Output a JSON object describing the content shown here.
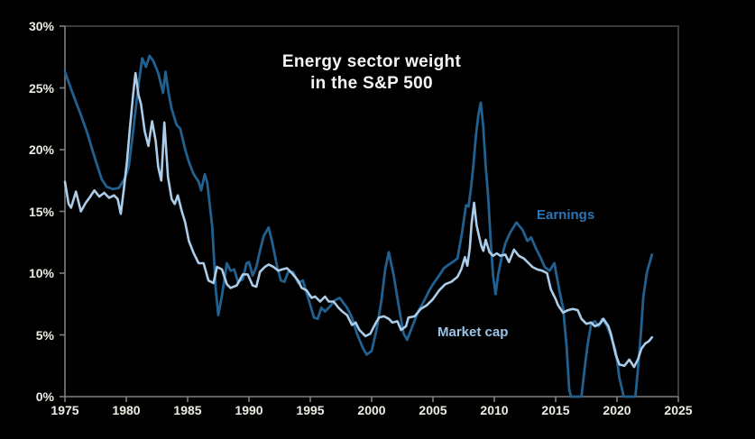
{
  "chart_data": {
    "type": "line",
    "title_lines": [
      "Energy sector weight",
      "in the S&P 500"
    ],
    "xlabel": "",
    "ylabel": "",
    "xlim": [
      1975,
      2025
    ],
    "ylim": [
      0,
      30
    ],
    "grid": false,
    "legend_position": "inline-annotations",
    "x_axis": {
      "tick_values": [
        1975,
        1980,
        1985,
        1990,
        1995,
        2000,
        2005,
        2010,
        2015,
        2020,
        2025
      ],
      "tick_labels": [
        "1975",
        "1980",
        "1985",
        "1990",
        "1995",
        "2000",
        "2005",
        "2010",
        "2015",
        "2020",
        "2025"
      ]
    },
    "y_axis": {
      "tick_values": [
        0,
        5,
        10,
        15,
        20,
        25,
        30
      ],
      "tick_labels": [
        "0%",
        "5%",
        "10%",
        "15%",
        "20%",
        "25%",
        "30%"
      ]
    },
    "series": [
      {
        "name": "Earnings",
        "color": "#21608f",
        "label_color": "#2e74b5",
        "stroke_width": 2.8,
        "points": [
          [
            1975.0,
            26.3
          ],
          [
            1975.4,
            25.2
          ],
          [
            1975.8,
            24.1
          ],
          [
            1976.3,
            22.8
          ],
          [
            1976.8,
            21.4
          ],
          [
            1977.2,
            20.1
          ],
          [
            1977.6,
            18.8
          ],
          [
            1978.0,
            17.6
          ],
          [
            1978.4,
            17.0
          ],
          [
            1978.9,
            16.8
          ],
          [
            1979.4,
            16.9
          ],
          [
            1979.9,
            17.7
          ],
          [
            1980.2,
            18.6
          ],
          [
            1980.5,
            21.0
          ],
          [
            1980.8,
            23.6
          ],
          [
            1981.0,
            25.3
          ],
          [
            1981.3,
            27.4
          ],
          [
            1981.6,
            26.7
          ],
          [
            1981.9,
            27.6
          ],
          [
            1982.2,
            27.2
          ],
          [
            1982.6,
            26.2
          ],
          [
            1983.0,
            24.6
          ],
          [
            1983.2,
            26.3
          ],
          [
            1983.45,
            24.6
          ],
          [
            1983.7,
            23.3
          ],
          [
            1984.1,
            22.0
          ],
          [
            1984.4,
            21.7
          ],
          [
            1984.8,
            20.0
          ],
          [
            1985.1,
            19.0
          ],
          [
            1985.5,
            18.0
          ],
          [
            1985.9,
            17.4
          ],
          [
            1986.1,
            16.7
          ],
          [
            1986.4,
            18.0
          ],
          [
            1986.6,
            17.3
          ],
          [
            1987.0,
            13.8
          ],
          [
            1987.3,
            8.6
          ],
          [
            1987.5,
            6.6
          ],
          [
            1987.8,
            8.2
          ],
          [
            1988.2,
            10.8
          ],
          [
            1988.5,
            10.2
          ],
          [
            1988.8,
            10.3
          ],
          [
            1989.1,
            9.3
          ],
          [
            1989.5,
            9.5
          ],
          [
            1989.8,
            10.8
          ],
          [
            1990.0,
            10.9
          ],
          [
            1990.3,
            9.8
          ],
          [
            1990.6,
            10.5
          ],
          [
            1990.9,
            11.8
          ],
          [
            1991.2,
            13.0
          ],
          [
            1991.6,
            13.7
          ],
          [
            1991.9,
            12.5
          ],
          [
            1992.3,
            10.5
          ],
          [
            1992.6,
            9.4
          ],
          [
            1992.9,
            9.3
          ],
          [
            1993.2,
            10.1
          ],
          [
            1993.6,
            10.1
          ],
          [
            1994.0,
            9.2
          ],
          [
            1994.4,
            9.4
          ],
          [
            1995.0,
            7.4
          ],
          [
            1995.3,
            6.4
          ],
          [
            1995.6,
            6.3
          ],
          [
            1995.9,
            7.2
          ],
          [
            1996.2,
            6.9
          ],
          [
            1996.6,
            7.3
          ],
          [
            1997.0,
            7.8
          ],
          [
            1997.4,
            8.0
          ],
          [
            1998.0,
            7.2
          ],
          [
            1998.4,
            6.4
          ],
          [
            1998.8,
            5.1
          ],
          [
            1999.3,
            3.9
          ],
          [
            1999.6,
            3.4
          ],
          [
            2000.0,
            3.7
          ],
          [
            2000.4,
            5.4
          ],
          [
            2000.8,
            7.8
          ],
          [
            2001.1,
            10.3
          ],
          [
            2001.4,
            11.7
          ],
          [
            2001.8,
            9.8
          ],
          [
            2002.2,
            7.4
          ],
          [
            2002.6,
            5.1
          ],
          [
            2002.9,
            4.6
          ],
          [
            2003.4,
            5.9
          ],
          [
            2003.8,
            6.9
          ],
          [
            2004.3,
            7.8
          ],
          [
            2004.7,
            8.6
          ],
          [
            2005.0,
            9.1
          ],
          [
            2005.5,
            9.8
          ],
          [
            2005.9,
            10.4
          ],
          [
            2006.3,
            10.7
          ],
          [
            2006.6,
            10.9
          ],
          [
            2007.0,
            11.2
          ],
          [
            2007.35,
            13.2
          ],
          [
            2007.7,
            15.5
          ],
          [
            2007.9,
            15.4
          ],
          [
            2008.1,
            16.9
          ],
          [
            2008.3,
            18.8
          ],
          [
            2008.5,
            21.1
          ],
          [
            2008.7,
            22.8
          ],
          [
            2008.9,
            23.8
          ],
          [
            2009.1,
            21.8
          ],
          [
            2009.3,
            18.6
          ],
          [
            2009.5,
            16.2
          ],
          [
            2009.7,
            12.7
          ],
          [
            2009.9,
            9.8
          ],
          [
            2010.1,
            8.3
          ],
          [
            2010.3,
            9.8
          ],
          [
            2010.6,
            11.3
          ],
          [
            2010.9,
            12.4
          ],
          [
            2011.3,
            13.3
          ],
          [
            2011.8,
            14.1
          ],
          [
            2012.3,
            13.5
          ],
          [
            2012.7,
            12.6
          ],
          [
            2013.0,
            12.9
          ],
          [
            2013.4,
            12.0
          ],
          [
            2013.8,
            11.2
          ],
          [
            2014.1,
            10.5
          ],
          [
            2014.5,
            10.2
          ],
          [
            2014.9,
            10.8
          ],
          [
            2015.3,
            8.6
          ],
          [
            2015.6,
            7.2
          ],
          [
            2015.9,
            4.0
          ],
          [
            2016.1,
            0.6
          ],
          [
            2016.25,
            0.0
          ],
          [
            2017.1,
            0.0
          ],
          [
            2017.35,
            2.2
          ],
          [
            2017.6,
            4.2
          ],
          [
            2017.9,
            5.9
          ],
          [
            2018.2,
            6.1
          ],
          [
            2018.5,
            5.7
          ],
          [
            2018.8,
            6.3
          ],
          [
            2019.2,
            5.7
          ],
          [
            2019.5,
            4.9
          ],
          [
            2019.9,
            3.7
          ],
          [
            2020.2,
            1.5
          ],
          [
            2020.55,
            0.0
          ],
          [
            2021.5,
            0.0
          ],
          [
            2021.75,
            2.7
          ],
          [
            2021.95,
            5.1
          ],
          [
            2022.15,
            8.1
          ],
          [
            2022.45,
            10.1
          ],
          [
            2022.85,
            11.5
          ]
        ]
      },
      {
        "name": "Market cap",
        "color": "#abcde9",
        "label_color": "#9cc3e5",
        "stroke_width": 2.6,
        "points": [
          [
            1975.0,
            17.4
          ],
          [
            1975.3,
            15.6
          ],
          [
            1975.5,
            15.3
          ],
          [
            1975.9,
            16.6
          ],
          [
            1976.3,
            15.0
          ],
          [
            1976.7,
            15.7
          ],
          [
            1977.0,
            16.1
          ],
          [
            1977.4,
            16.7
          ],
          [
            1977.8,
            16.2
          ],
          [
            1978.2,
            16.5
          ],
          [
            1978.6,
            16.1
          ],
          [
            1979.0,
            16.3
          ],
          [
            1979.3,
            16.0
          ],
          [
            1979.55,
            14.8
          ],
          [
            1979.8,
            16.8
          ],
          [
            1980.05,
            19.0
          ],
          [
            1980.3,
            21.8
          ],
          [
            1980.55,
            24.4
          ],
          [
            1980.75,
            26.2
          ],
          [
            1981.0,
            24.4
          ],
          [
            1981.2,
            23.7
          ],
          [
            1981.5,
            21.5
          ],
          [
            1981.8,
            20.3
          ],
          [
            1982.1,
            22.3
          ],
          [
            1982.4,
            20.7
          ],
          [
            1982.6,
            18.6
          ],
          [
            1982.85,
            17.5
          ],
          [
            1983.1,
            22.2
          ],
          [
            1983.4,
            17.8
          ],
          [
            1983.7,
            16.0
          ],
          [
            1983.95,
            15.6
          ],
          [
            1984.2,
            16.3
          ],
          [
            1984.5,
            15.1
          ],
          [
            1984.8,
            14.1
          ],
          [
            1985.1,
            12.6
          ],
          [
            1985.5,
            11.6
          ],
          [
            1985.9,
            10.8
          ],
          [
            1986.3,
            10.8
          ],
          [
            1986.7,
            9.4
          ],
          [
            1987.1,
            9.2
          ],
          [
            1987.4,
            10.5
          ],
          [
            1987.8,
            10.3
          ],
          [
            1988.2,
            9.1
          ],
          [
            1988.5,
            8.8
          ],
          [
            1989.0,
            9.0
          ],
          [
            1989.5,
            9.9
          ],
          [
            1989.9,
            9.9
          ],
          [
            1990.3,
            9.0
          ],
          [
            1990.6,
            8.9
          ],
          [
            1990.9,
            10.1
          ],
          [
            1991.3,
            10.5
          ],
          [
            1991.6,
            10.7
          ],
          [
            1992.0,
            10.5
          ],
          [
            1992.4,
            10.2
          ],
          [
            1992.7,
            10.3
          ],
          [
            1993.1,
            10.4
          ],
          [
            1993.5,
            10.0
          ],
          [
            1994.0,
            9.4
          ],
          [
            1994.3,
            8.8
          ],
          [
            1994.7,
            8.6
          ],
          [
            1995.1,
            8.0
          ],
          [
            1995.4,
            8.1
          ],
          [
            1995.8,
            7.7
          ],
          [
            1996.2,
            8.1
          ],
          [
            1996.5,
            7.7
          ],
          [
            1996.9,
            7.7
          ],
          [
            1997.3,
            7.2
          ],
          [
            1997.6,
            6.9
          ],
          [
            1998.0,
            6.6
          ],
          [
            1998.4,
            5.8
          ],
          [
            1998.7,
            6.0
          ],
          [
            1999.0,
            5.4
          ],
          [
            1999.5,
            4.9
          ],
          [
            1999.9,
            5.1
          ],
          [
            2000.3,
            5.9
          ],
          [
            2000.6,
            6.4
          ],
          [
            2001.0,
            6.5
          ],
          [
            2001.4,
            6.3
          ],
          [
            2001.7,
            6.0
          ],
          [
            2002.1,
            6.1
          ],
          [
            2002.4,
            5.4
          ],
          [
            2002.8,
            5.7
          ],
          [
            2003.0,
            6.4
          ],
          [
            2003.5,
            6.5
          ],
          [
            2004.0,
            7.1
          ],
          [
            2004.5,
            7.4
          ],
          [
            2005.0,
            7.9
          ],
          [
            2005.5,
            8.6
          ],
          [
            2006.0,
            9.1
          ],
          [
            2006.5,
            9.3
          ],
          [
            2007.0,
            9.7
          ],
          [
            2007.3,
            10.3
          ],
          [
            2007.6,
            11.3
          ],
          [
            2007.8,
            10.6
          ],
          [
            2008.0,
            12.0
          ],
          [
            2008.15,
            14.0
          ],
          [
            2008.35,
            15.7
          ],
          [
            2008.55,
            13.9
          ],
          [
            2008.75,
            13.0
          ],
          [
            2008.95,
            12.2
          ],
          [
            2009.1,
            11.8
          ],
          [
            2009.3,
            12.7
          ],
          [
            2009.6,
            11.7
          ],
          [
            2009.9,
            11.4
          ],
          [
            2010.2,
            11.6
          ],
          [
            2010.5,
            11.4
          ],
          [
            2010.9,
            11.5
          ],
          [
            2011.2,
            10.9
          ],
          [
            2011.6,
            11.9
          ],
          [
            2012.0,
            11.4
          ],
          [
            2012.4,
            11.2
          ],
          [
            2012.8,
            10.8
          ],
          [
            2013.1,
            10.5
          ],
          [
            2013.5,
            10.3
          ],
          [
            2013.9,
            10.2
          ],
          [
            2014.3,
            10.0
          ],
          [
            2014.6,
            8.7
          ],
          [
            2015.0,
            7.9
          ],
          [
            2015.2,
            7.4
          ],
          [
            2015.6,
            6.8
          ],
          [
            2016.0,
            7.0
          ],
          [
            2016.4,
            7.1
          ],
          [
            2016.8,
            7.0
          ],
          [
            2017.1,
            6.3
          ],
          [
            2017.5,
            5.9
          ],
          [
            2017.9,
            6.0
          ],
          [
            2018.2,
            5.7
          ],
          [
            2018.6,
            5.9
          ],
          [
            2018.9,
            6.3
          ],
          [
            2019.3,
            5.7
          ],
          [
            2019.5,
            5.1
          ],
          [
            2019.9,
            3.4
          ],
          [
            2020.2,
            2.6
          ],
          [
            2020.6,
            2.5
          ],
          [
            2021.0,
            3.0
          ],
          [
            2021.4,
            2.4
          ],
          [
            2021.7,
            3.0
          ],
          [
            2022.0,
            3.9
          ],
          [
            2022.3,
            4.3
          ],
          [
            2022.6,
            4.5
          ],
          [
            2022.85,
            4.8
          ]
        ]
      }
    ],
    "annotations": [
      {
        "text": "Earnings",
        "series": "Earnings"
      },
      {
        "text": "Market cap",
        "series": "Market cap"
      }
    ]
  },
  "colors": {
    "background": "#000000",
    "title": "#f5f5f5",
    "tick_label": "#efece4",
    "axis_line": "#808080",
    "tick_mark": "#808080",
    "plot_border": "#3a3a3a",
    "earnings_line": "#21608f",
    "market_cap_line": "#abcde9",
    "earnings_label": "#2e74b5",
    "market_cap_label": "#9cc3e5"
  }
}
